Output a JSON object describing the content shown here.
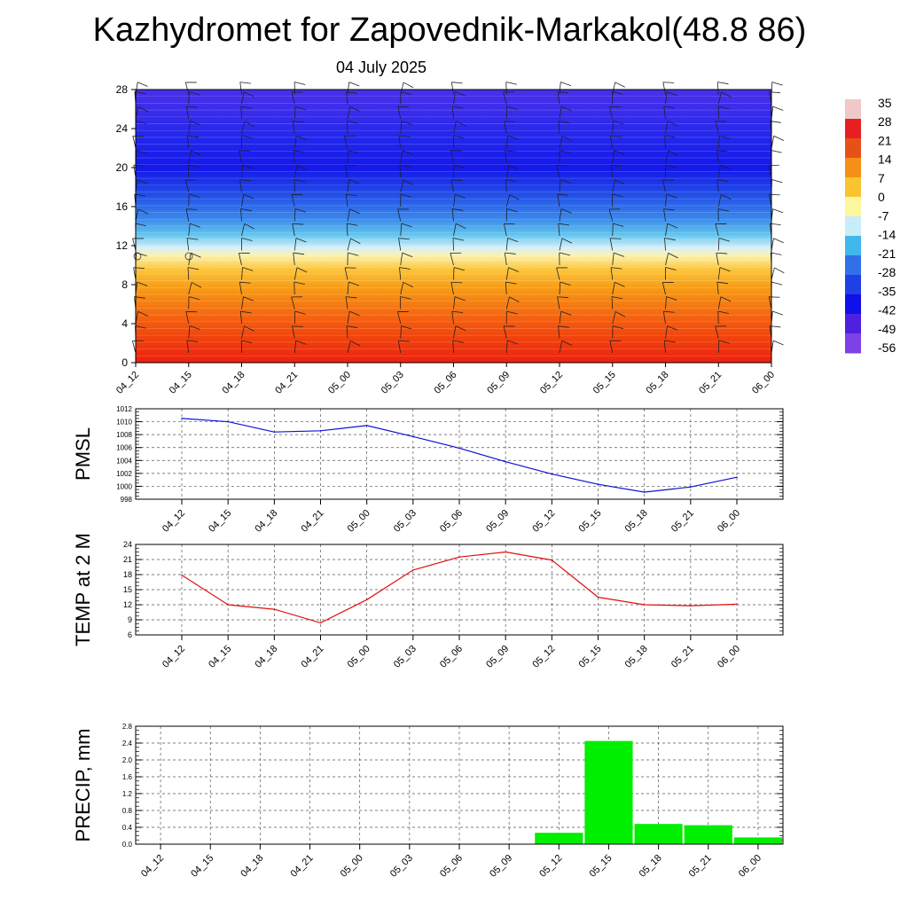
{
  "title": "Kazhydromet for Zapovednik-Markakol(48.8 86)",
  "subtitle": "04 July 2025",
  "chart_data": [
    {
      "type": "heatmap",
      "x_ticks": [
        "04_12",
        "04_15",
        "04_18",
        "04_21",
        "05_00",
        "05_03",
        "05_06",
        "05_09",
        "05_12",
        "05_15",
        "05_18",
        "05_21",
        "06_00"
      ],
      "y_ticks": [
        0,
        4,
        8,
        12,
        16,
        20,
        24,
        28
      ],
      "ylim": [
        0,
        28
      ],
      "colorbar": {
        "labels": [
          "35",
          "28",
          "21",
          "14",
          "7",
          "0",
          "-7",
          "-14",
          "-21",
          "-28",
          "-35",
          "-42",
          "-49",
          "-56"
        ],
        "colors": [
          "#f0c8c8",
          "#e62020",
          "#e8501a",
          "#f39015",
          "#f8c530",
          "#fdf7a0",
          "#c8ecf8",
          "#40b8ec",
          "#3070e8",
          "#2040e6",
          "#1010ea",
          "#5020e0",
          "#8040e8"
        ]
      }
    },
    {
      "type": "line",
      "ylabel": "PMSL",
      "ylim": [
        998,
        1012
      ],
      "y_ticks": [
        998,
        1000,
        1002,
        1004,
        1006,
        1008,
        1010,
        1012
      ],
      "x": [
        "04_12",
        "04_15",
        "04_18",
        "04_21",
        "05_00",
        "05_03",
        "05_06",
        "05_09",
        "05_12",
        "05_15",
        "05_18",
        "05_21",
        "06_00"
      ],
      "values": [
        1010.5,
        1010.0,
        1008.4,
        1008.6,
        1009.4,
        1007.7,
        1005.9,
        1003.8,
        1001.9,
        1000.3,
        999.1,
        999.9,
        1001.4
      ],
      "color": "#1010d8"
    },
    {
      "type": "line",
      "ylabel": "TEMP at 2 M",
      "ylim": [
        6,
        24
      ],
      "y_ticks": [
        6,
        9,
        12,
        15,
        18,
        21,
        24
      ],
      "x": [
        "04_12",
        "04_15",
        "04_18",
        "04_21",
        "05_00",
        "05_03",
        "05_06",
        "05_09",
        "05_12",
        "05_15",
        "05_18",
        "05_21",
        "06_00"
      ],
      "values": [
        17.9,
        12.0,
        11.1,
        8.4,
        13.0,
        18.9,
        21.5,
        22.5,
        20.9,
        13.5,
        12.0,
        11.8,
        12.1
      ],
      "color": "#e01010"
    },
    {
      "type": "bar",
      "ylabel": "PRECIP, mm",
      "ylim": [
        0,
        2.8
      ],
      "y_ticks": [
        "0.0",
        "0.4",
        "0.8",
        "1.2",
        "1.6",
        "2.0",
        "2.4",
        "2.8"
      ],
      "categories": [
        "04_12",
        "04_15",
        "04_18",
        "04_21",
        "05_00",
        "05_03",
        "05_06",
        "05_09",
        "05_12",
        "05_15",
        "05_18",
        "05_21",
        "06_00"
      ],
      "values": [
        0,
        0,
        0,
        0,
        0,
        0,
        0,
        0,
        0.27,
        2.45,
        0.48,
        0.45,
        0.16
      ],
      "color": "#00ee00"
    }
  ]
}
